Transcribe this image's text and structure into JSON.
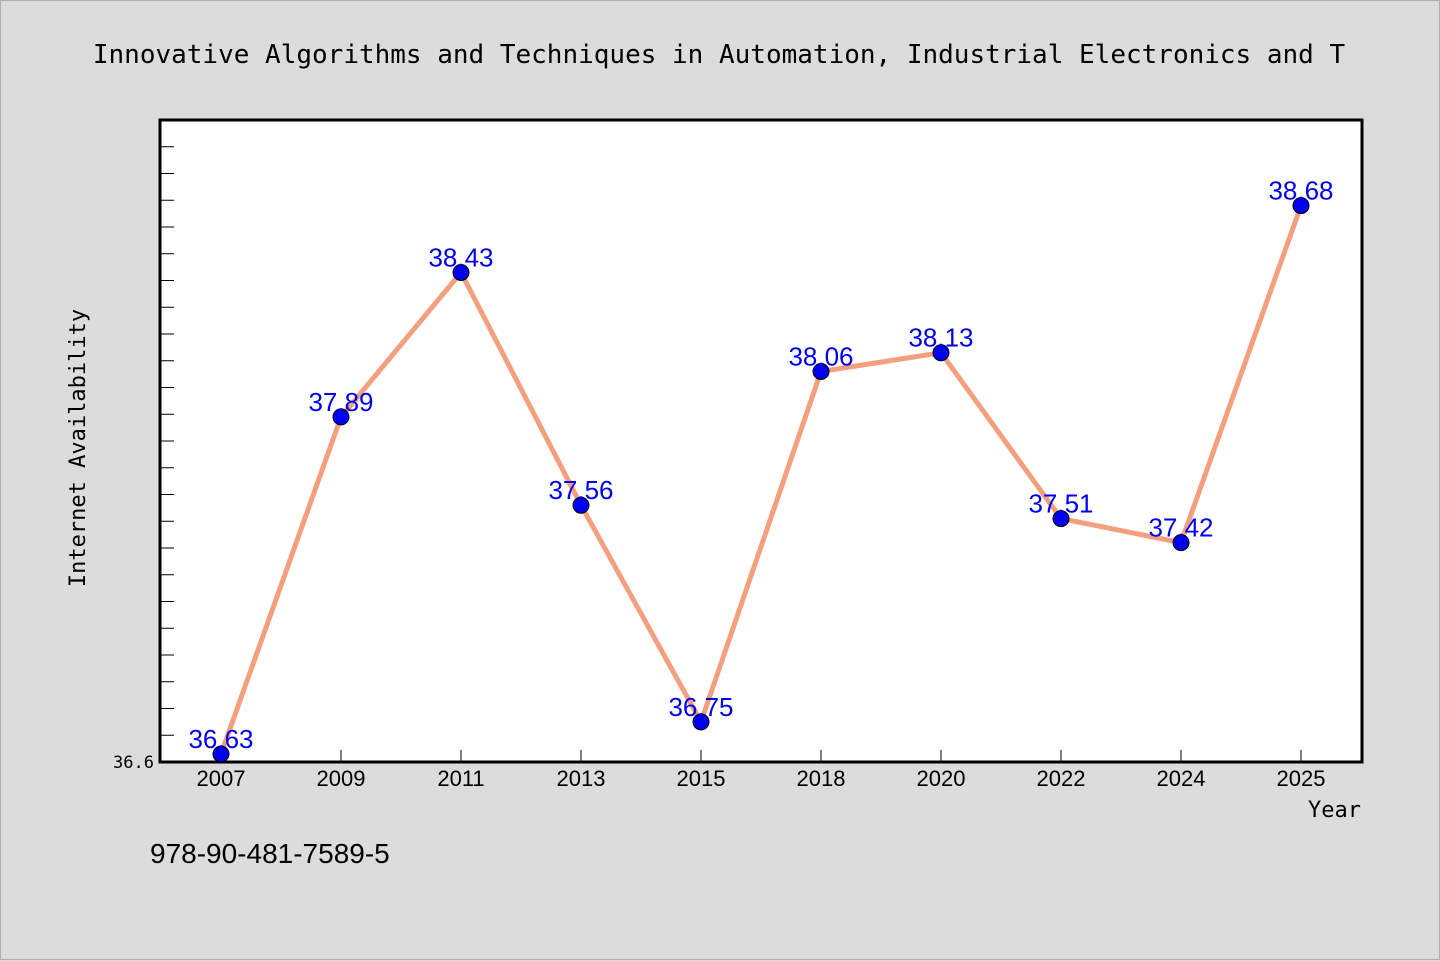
{
  "colors": {
    "background": "#dcdcdc",
    "plot_background": "#ffffff",
    "line": "#f4a07e",
    "marker": "#0000ee",
    "label": "#0000ee",
    "axis": "#000000"
  },
  "footer": {
    "isbn": "978-90-481-7589-5"
  },
  "chart_data": {
    "type": "line",
    "title": "Innovative Algorithms and Techniques in Automation, Industrial Electronics and T",
    "xlabel": "Year",
    "ylabel": "Internet Availability",
    "categories": [
      "2007",
      "2009",
      "2011",
      "2013",
      "2015",
      "2018",
      "2020",
      "2022",
      "2024",
      "2025"
    ],
    "series": [
      {
        "values": [
          36.63,
          37.89,
          38.43,
          37.56,
          36.75,
          38.06,
          38.13,
          37.51,
          37.42,
          38.68
        ],
        "labels": [
          "36.63",
          "37.89",
          "38.43",
          "37.56",
          "36.75",
          "38.06",
          "38.13",
          "37.51",
          "37.42",
          "38.68"
        ]
      }
    ],
    "ylim": [
      36.6,
      39.0
    ],
    "y_tick_labels": [
      "36.6"
    ],
    "y_minor_step": 0.1,
    "grid": false,
    "legend": "none"
  }
}
